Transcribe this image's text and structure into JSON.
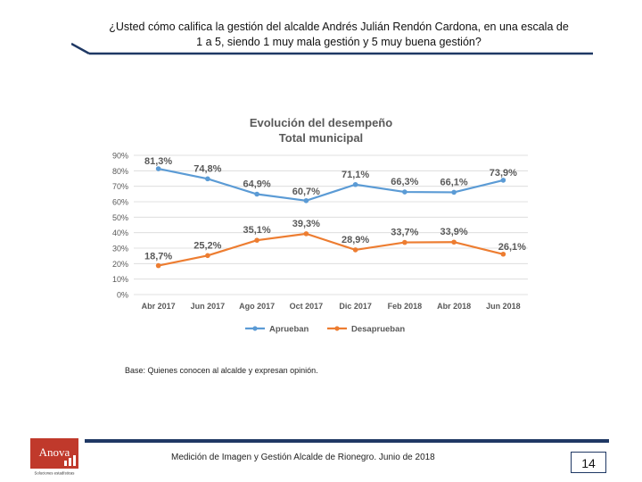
{
  "header": {
    "title_line1": "¿Usted cómo califica la gestión del alcalde Andrés Julián Rendón Cardona, en una escala de",
    "title_line2": "1 a 5, siendo 1 muy mala gestión y 5 muy buena gestión?"
  },
  "chart_data": {
    "type": "line",
    "title": "Evolución del desempeño",
    "subtitle": "Total municipal",
    "categories": [
      "Abr 2017",
      "Jun 2017",
      "Ago 2017",
      "Oct 2017",
      "Dic 2017",
      "Feb 2018",
      "Abr 2018",
      "Jun 2018"
    ],
    "y_ticks": [
      "0%",
      "10%",
      "20%",
      "30%",
      "40%",
      "50%",
      "60%",
      "70%",
      "80%",
      "90%"
    ],
    "ylim": [
      0,
      90
    ],
    "grid": true,
    "legend_position": "bottom",
    "series": [
      {
        "name": "Aprueban",
        "color": "#5b9bd5",
        "values": [
          81.3,
          74.8,
          64.9,
          60.7,
          71.1,
          66.3,
          66.1,
          73.9
        ],
        "labels": [
          "81,3%",
          "74,8%",
          "64,9%",
          "60,7%",
          "71,1%",
          "66,3%",
          "66,1%",
          "73,9%"
        ]
      },
      {
        "name": "Desaprueban",
        "color": "#ed7d31",
        "values": [
          18.7,
          25.2,
          35.1,
          39.3,
          28.9,
          33.7,
          33.9,
          26.1
        ],
        "labels": [
          "18,7%",
          "25,2%",
          "35,1%",
          "39,3%",
          "28,9%",
          "33,7%",
          "33,9%",
          "26,1%"
        ]
      }
    ]
  },
  "notes": {
    "base": "Base: Quienes conocen al alcalde y expresan opinión."
  },
  "footer": {
    "text": "Medición de Imagen y Gestión Alcalde de Rionegro. Junio de 2018",
    "page_number": "14",
    "logo_name": "Anova",
    "logo_tagline": "Soluciones estadísticas"
  },
  "colors": {
    "accent_navy": "#1f3864",
    "logo_red": "#c0392b"
  }
}
